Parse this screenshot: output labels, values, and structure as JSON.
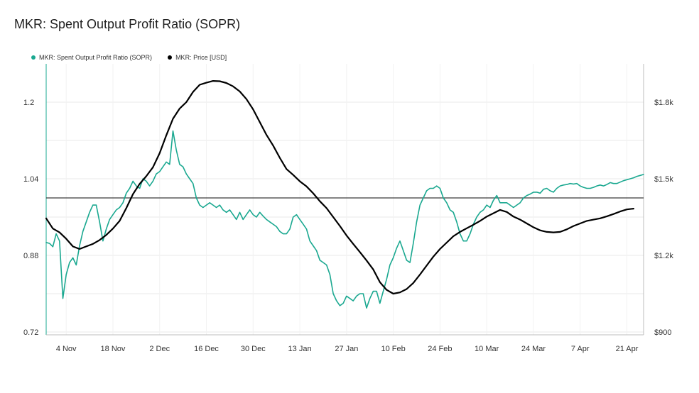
{
  "title": "MKR: Spent Output Profit Ratio (SOPR)",
  "colors": {
    "sopr": "#1aa890",
    "price": "#000000",
    "grid": "#e9e9e9",
    "axis": "#bdbdbd"
  },
  "legend": [
    {
      "label": "MKR: Spent Output Profit Ratio (SOPR)",
      "color": "#1aa890"
    },
    {
      "label": "MKR: Price [USD]",
      "color": "#000000"
    }
  ],
  "chart_data": {
    "type": "line",
    "x_ticks": [
      "4 Nov",
      "18 Nov",
      "2 Dec",
      "16 Dec",
      "30 Dec",
      "13 Jan",
      "27 Jan",
      "10 Feb",
      "24 Feb",
      "10 Mar",
      "24 Mar",
      "7 Apr",
      "21 Apr"
    ],
    "x_tick_days": [
      6,
      20,
      34,
      48,
      62,
      76,
      90,
      104,
      118,
      132,
      146,
      160,
      174
    ],
    "x_range_days": [
      0,
      179
    ],
    "y_left": {
      "ticks": [
        0.72,
        0.88,
        1.04,
        1.2
      ],
      "tick_labels": [
        "0.72",
        "0.88",
        "1.04",
        "1.2"
      ],
      "range": [
        0.72,
        1.24
      ]
    },
    "y_right": {
      "ticks": [
        900,
        1200,
        1500,
        1800
      ],
      "tick_labels": [
        "$900",
        "$1.2k",
        "$1.5k",
        "$1.8k"
      ],
      "range": [
        900,
        1885
      ]
    },
    "reference_line": 1.0,
    "series": [
      {
        "name": "MKR: Spent Output Profit Ratio (SOPR)",
        "axis": "left",
        "points": [
          [
            0,
            0.907
          ],
          [
            1,
            0.905
          ],
          [
            2,
            0.898
          ],
          [
            3,
            0.925
          ],
          [
            4,
            0.91
          ],
          [
            5,
            0.79
          ],
          [
            6,
            0.84
          ],
          [
            7,
            0.865
          ],
          [
            8,
            0.875
          ],
          [
            9,
            0.86
          ],
          [
            10,
            0.9
          ],
          [
            11,
            0.93
          ],
          [
            12,
            0.95
          ],
          [
            13,
            0.97
          ],
          [
            14,
            0.985
          ],
          [
            15,
            0.985
          ],
          [
            16,
            0.95
          ],
          [
            17,
            0.91
          ],
          [
            18,
            0.935
          ],
          [
            19,
            0.955
          ],
          [
            20,
            0.965
          ],
          [
            21,
            0.975
          ],
          [
            22,
            0.98
          ],
          [
            23,
            0.99
          ],
          [
            24,
            1.01
          ],
          [
            25,
            1.02
          ],
          [
            26,
            1.035
          ],
          [
            27,
            1.025
          ],
          [
            28,
            1.02
          ],
          [
            29,
            1.04
          ],
          [
            30,
            1.035
          ],
          [
            31,
            1.025
          ],
          [
            32,
            1.035
          ],
          [
            33,
            1.05
          ],
          [
            34,
            1.055
          ],
          [
            35,
            1.065
          ],
          [
            36,
            1.075
          ],
          [
            37,
            1.07
          ],
          [
            38,
            1.14
          ],
          [
            39,
            1.1
          ],
          [
            40,
            1.07
          ],
          [
            41,
            1.065
          ],
          [
            42,
            1.05
          ],
          [
            43,
            1.04
          ],
          [
            44,
            1.03
          ],
          [
            45,
            1.0
          ],
          [
            46,
            0.985
          ],
          [
            47,
            0.98
          ],
          [
            48,
            0.985
          ],
          [
            49,
            0.99
          ],
          [
            50,
            0.985
          ],
          [
            51,
            0.98
          ],
          [
            52,
            0.985
          ],
          [
            53,
            0.975
          ],
          [
            54,
            0.97
          ],
          [
            55,
            0.975
          ],
          [
            56,
            0.965
          ],
          [
            57,
            0.955
          ],
          [
            58,
            0.97
          ],
          [
            59,
            0.955
          ],
          [
            60,
            0.965
          ],
          [
            61,
            0.975
          ],
          [
            62,
            0.965
          ],
          [
            63,
            0.96
          ],
          [
            64,
            0.97
          ],
          [
            65,
            0.962
          ],
          [
            66,
            0.955
          ],
          [
            67,
            0.95
          ],
          [
            68,
            0.945
          ],
          [
            69,
            0.94
          ],
          [
            70,
            0.93
          ],
          [
            71,
            0.925
          ],
          [
            72,
            0.925
          ],
          [
            73,
            0.935
          ],
          [
            74,
            0.96
          ],
          [
            75,
            0.965
          ],
          [
            76,
            0.955
          ],
          [
            77,
            0.945
          ],
          [
            78,
            0.935
          ],
          [
            79,
            0.91
          ],
          [
            80,
            0.9
          ],
          [
            81,
            0.89
          ],
          [
            82,
            0.87
          ],
          [
            83,
            0.865
          ],
          [
            84,
            0.86
          ],
          [
            85,
            0.84
          ],
          [
            86,
            0.8
          ],
          [
            87,
            0.785
          ],
          [
            88,
            0.775
          ],
          [
            89,
            0.78
          ],
          [
            90,
            0.795
          ],
          [
            91,
            0.79
          ],
          [
            92,
            0.785
          ],
          [
            93,
            0.795
          ],
          [
            94,
            0.8
          ],
          [
            95,
            0.8
          ],
          [
            96,
            0.77
          ],
          [
            97,
            0.79
          ],
          [
            98,
            0.805
          ],
          [
            99,
            0.805
          ],
          [
            100,
            0.78
          ],
          [
            101,
            0.805
          ],
          [
            102,
            0.83
          ],
          [
            103,
            0.86
          ],
          [
            104,
            0.875
          ],
          [
            105,
            0.895
          ],
          [
            106,
            0.91
          ],
          [
            107,
            0.89
          ],
          [
            108,
            0.87
          ],
          [
            109,
            0.865
          ],
          [
            110,
            0.905
          ],
          [
            111,
            0.95
          ],
          [
            112,
            0.985
          ],
          [
            113,
            1.0
          ],
          [
            114,
            1.015
          ],
          [
            115,
            1.02
          ],
          [
            116,
            1.02
          ],
          [
            117,
            1.025
          ],
          [
            118,
            1.02
          ],
          [
            119,
            1.0
          ],
          [
            120,
            0.99
          ],
          [
            121,
            0.975
          ],
          [
            122,
            0.97
          ],
          [
            123,
            0.95
          ],
          [
            124,
            0.925
          ],
          [
            125,
            0.91
          ],
          [
            126,
            0.91
          ],
          [
            127,
            0.925
          ],
          [
            128,
            0.945
          ],
          [
            129,
            0.96
          ],
          [
            130,
            0.97
          ],
          [
            131,
            0.975
          ],
          [
            132,
            0.985
          ],
          [
            133,
            0.98
          ],
          [
            134,
            0.995
          ],
          [
            135,
            1.005
          ],
          [
            136,
            0.99
          ],
          [
            137,
            0.99
          ],
          [
            138,
            0.99
          ],
          [
            139,
            0.985
          ],
          [
            140,
            0.98
          ],
          [
            141,
            0.985
          ],
          [
            142,
            0.99
          ],
          [
            143,
            1.0
          ],
          [
            144,
            1.005
          ],
          [
            145,
            1.008
          ],
          [
            146,
            1.012
          ],
          [
            147,
            1.012
          ],
          [
            148,
            1.01
          ],
          [
            149,
            1.018
          ],
          [
            150,
            1.02
          ],
          [
            151,
            1.015
          ],
          [
            152,
            1.012
          ],
          [
            153,
            1.02
          ],
          [
            154,
            1.025
          ],
          [
            155,
            1.027
          ],
          [
            156,
            1.028
          ],
          [
            157,
            1.03
          ],
          [
            158,
            1.029
          ],
          [
            159,
            1.03
          ],
          [
            160,
            1.025
          ],
          [
            161,
            1.022
          ],
          [
            162,
            1.02
          ],
          [
            163,
            1.02
          ],
          [
            164,
            1.022
          ],
          [
            165,
            1.025
          ],
          [
            166,
            1.027
          ],
          [
            167,
            1.025
          ],
          [
            168,
            1.028
          ],
          [
            169,
            1.032
          ],
          [
            170,
            1.03
          ],
          [
            171,
            1.03
          ],
          [
            172,
            1.033
          ],
          [
            173,
            1.036
          ],
          [
            174,
            1.038
          ],
          [
            175,
            1.04
          ],
          [
            176,
            1.042
          ],
          [
            177,
            1.045
          ],
          [
            178,
            1.047
          ],
          [
            179,
            1.049
          ]
        ]
      },
      {
        "name": "MKR: Price [USD]",
        "axis": "right",
        "points": [
          [
            0,
            1345
          ],
          [
            2,
            1305
          ],
          [
            4,
            1290
          ],
          [
            6,
            1265
          ],
          [
            8,
            1235
          ],
          [
            10,
            1225
          ],
          [
            12,
            1235
          ],
          [
            14,
            1245
          ],
          [
            16,
            1260
          ],
          [
            18,
            1280
          ],
          [
            20,
            1305
          ],
          [
            22,
            1335
          ],
          [
            24,
            1385
          ],
          [
            26,
            1440
          ],
          [
            28,
            1480
          ],
          [
            30,
            1510
          ],
          [
            32,
            1545
          ],
          [
            34,
            1600
          ],
          [
            36,
            1670
          ],
          [
            38,
            1735
          ],
          [
            40,
            1775
          ],
          [
            42,
            1800
          ],
          [
            44,
            1840
          ],
          [
            46,
            1868
          ],
          [
            48,
            1876
          ],
          [
            50,
            1883
          ],
          [
            52,
            1882
          ],
          [
            54,
            1875
          ],
          [
            56,
            1862
          ],
          [
            58,
            1842
          ],
          [
            60,
            1812
          ],
          [
            62,
            1772
          ],
          [
            64,
            1722
          ],
          [
            66,
            1672
          ],
          [
            68,
            1630
          ],
          [
            70,
            1582
          ],
          [
            72,
            1538
          ],
          [
            74,
            1515
          ],
          [
            76,
            1490
          ],
          [
            78,
            1470
          ],
          [
            80,
            1443
          ],
          [
            82,
            1412
          ],
          [
            84,
            1385
          ],
          [
            86,
            1350
          ],
          [
            88,
            1315
          ],
          [
            90,
            1278
          ],
          [
            92,
            1245
          ],
          [
            94,
            1213
          ],
          [
            96,
            1180
          ],
          [
            98,
            1145
          ],
          [
            100,
            1095
          ],
          [
            102,
            1065
          ],
          [
            104,
            1050
          ],
          [
            106,
            1055
          ],
          [
            108,
            1068
          ],
          [
            110,
            1092
          ],
          [
            112,
            1125
          ],
          [
            114,
            1160
          ],
          [
            116,
            1195
          ],
          [
            118,
            1225
          ],
          [
            120,
            1250
          ],
          [
            122,
            1275
          ],
          [
            124,
            1292
          ],
          [
            126,
            1306
          ],
          [
            128,
            1320
          ],
          [
            130,
            1335
          ],
          [
            132,
            1352
          ],
          [
            134,
            1365
          ],
          [
            136,
            1378
          ],
          [
            138,
            1370
          ],
          [
            140,
            1352
          ],
          [
            142,
            1340
          ],
          [
            144,
            1325
          ],
          [
            146,
            1310
          ],
          [
            148,
            1298
          ],
          [
            150,
            1292
          ],
          [
            152,
            1290
          ],
          [
            154,
            1292
          ],
          [
            156,
            1302
          ],
          [
            158,
            1315
          ],
          [
            160,
            1325
          ],
          [
            162,
            1335
          ],
          [
            164,
            1340
          ],
          [
            166,
            1345
          ],
          [
            168,
            1353
          ],
          [
            170,
            1362
          ],
          [
            172,
            1372
          ],
          [
            174,
            1380
          ],
          [
            176,
            1383
          ]
        ]
      }
    ],
    "grid": true,
    "legend_position": "top-left"
  }
}
